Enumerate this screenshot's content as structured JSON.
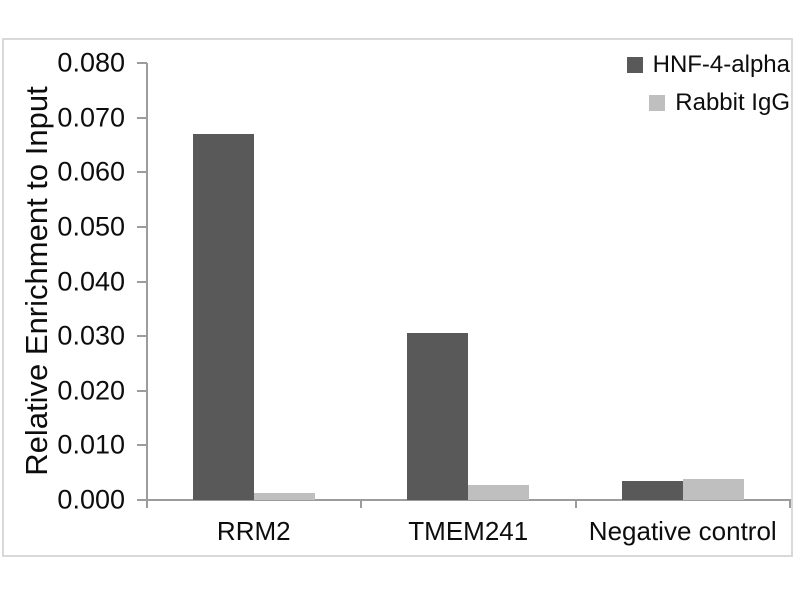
{
  "chart_data": {
    "type": "bar",
    "title": "",
    "xlabel": "",
    "ylabel": "Relative Enrichment to Input",
    "categories": [
      "RRM2",
      "TMEM241",
      "Negative control"
    ],
    "series": [
      {
        "name": "HNF-4-alpha",
        "color": "#595959",
        "values": [
          0.067,
          0.0305,
          0.0035
        ]
      },
      {
        "name": "Rabbit IgG",
        "color": "#bfbfbf",
        "values": [
          0.0012,
          0.0027,
          0.0039
        ]
      }
    ],
    "ylim": [
      0,
      0.08
    ],
    "ytick_step": 0.01,
    "ytick_labels": [
      "0.000",
      "0.010",
      "0.020",
      "0.030",
      "0.040",
      "0.050",
      "0.060",
      "0.070",
      "0.080"
    ],
    "grid": false,
    "legend_position": "top-right",
    "colors": {
      "background": "#ffffff",
      "frame_border": "#d9d9d9",
      "axis": "#9c9c9c",
      "text": "#0d0d0d"
    }
  }
}
